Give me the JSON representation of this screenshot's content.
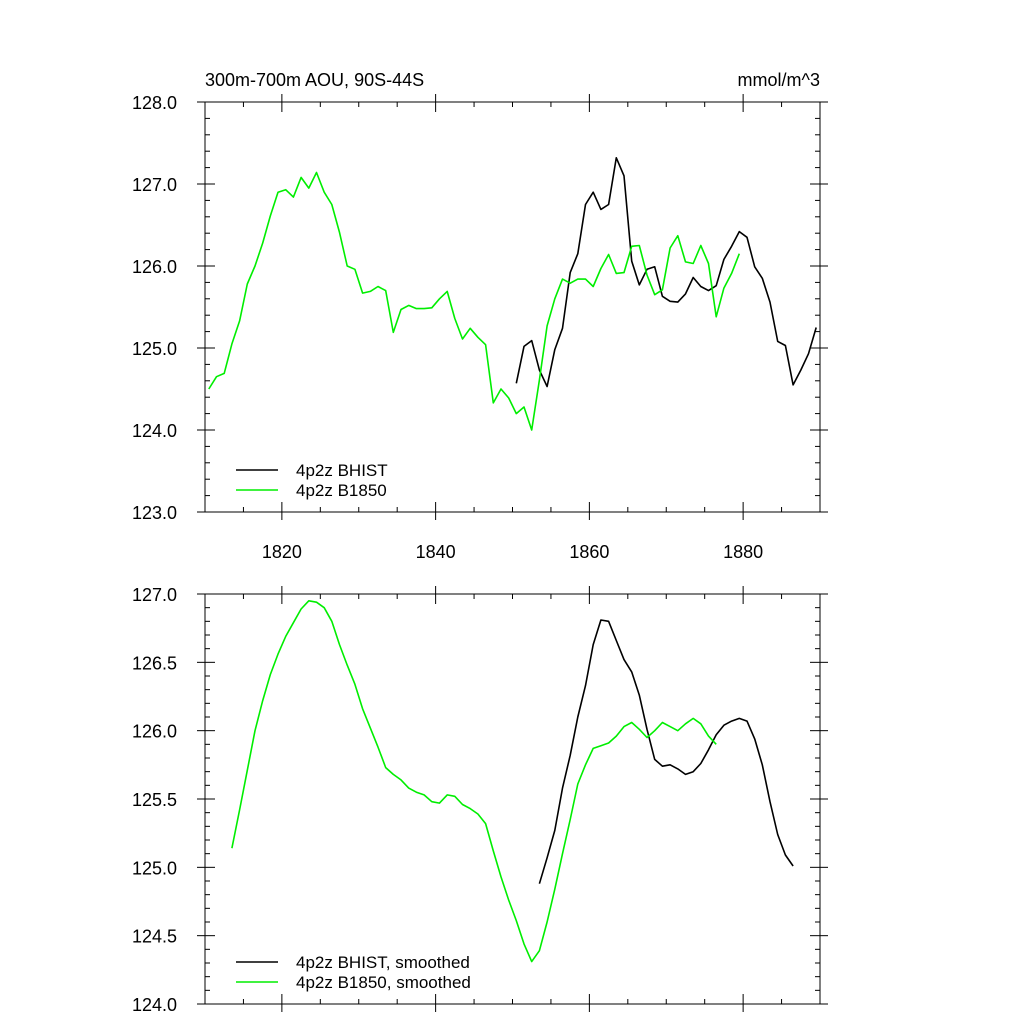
{
  "colors": {
    "bhist": "#000000",
    "b1850": "#00ee00",
    "background": "#ffffff"
  },
  "chart_data": [
    {
      "type": "line",
      "title": "300m-700m AOU, 90S-44S",
      "units": "mmol/m^3",
      "xlim": [
        1810,
        1890
      ],
      "ylim": [
        123.0,
        128.0
      ],
      "x_ticks": [
        "1820",
        "1840",
        "1860",
        "1880"
      ],
      "y_ticks": [
        "123.0",
        "124.0",
        "125.0",
        "126.0",
        "127.0",
        "128.0"
      ],
      "legend_position": "bottom-left",
      "series": [
        {
          "name": "4p2z BHIST",
          "color": "#000000",
          "x": [
            1850.5,
            1851.5,
            1852.5,
            1853.5,
            1854.5,
            1855.5,
            1856.5,
            1857.5,
            1858.5,
            1859.5,
            1860.5,
            1861.5,
            1862.5,
            1863.5,
            1864.5,
            1865.5,
            1866.5,
            1867.5,
            1868.5,
            1869.5,
            1870.5,
            1871.5,
            1872.5,
            1873.5,
            1874.5,
            1875.5,
            1876.5,
            1877.5,
            1878.5,
            1879.5,
            1880.5,
            1881.5,
            1882.5,
            1883.5,
            1884.5,
            1885.5,
            1886.5,
            1887.5,
            1888.5,
            1889.5
          ],
          "y": [
            124.57,
            125.02,
            125.09,
            124.73,
            124.53,
            124.98,
            125.24,
            125.92,
            126.15,
            126.75,
            126.9,
            126.69,
            126.75,
            127.32,
            127.1,
            126.06,
            125.77,
            125.96,
            125.99,
            125.63,
            125.57,
            125.56,
            125.66,
            125.86,
            125.75,
            125.7,
            125.76,
            126.08,
            126.24,
            126.42,
            126.35,
            125.99,
            125.85,
            125.56,
            125.08,
            125.03,
            124.55,
            124.73,
            124.93,
            125.25
          ]
        },
        {
          "name": "4p2z B1850",
          "color": "#00ee00",
          "x": [
            1810.5,
            1811.5,
            1812.5,
            1813.5,
            1814.5,
            1815.5,
            1816.5,
            1817.5,
            1818.5,
            1819.5,
            1820.5,
            1821.5,
            1822.5,
            1823.5,
            1824.5,
            1825.5,
            1826.5,
            1827.5,
            1828.5,
            1829.5,
            1830.5,
            1831.5,
            1832.5,
            1833.5,
            1834.5,
            1835.5,
            1836.5,
            1837.5,
            1838.5,
            1839.5,
            1840.5,
            1841.5,
            1842.5,
            1843.5,
            1844.5,
            1845.5,
            1846.5,
            1847.5,
            1848.5,
            1849.5,
            1850.5,
            1851.5,
            1852.5,
            1853.5,
            1854.5,
            1855.5,
            1856.5,
            1857.5,
            1858.5,
            1859.5,
            1860.5,
            1861.5,
            1862.5,
            1863.5,
            1864.5,
            1865.5,
            1866.5,
            1867.5,
            1868.5,
            1869.5,
            1870.5,
            1871.5,
            1872.5,
            1873.5,
            1874.5,
            1875.5,
            1876.5,
            1877.5,
            1878.5,
            1879.5
          ],
          "y": [
            124.5,
            124.65,
            124.69,
            125.05,
            125.33,
            125.78,
            126.0,
            126.28,
            126.61,
            126.9,
            126.93,
            126.84,
            127.08,
            126.95,
            127.14,
            126.9,
            126.75,
            126.41,
            126.0,
            125.96,
            125.67,
            125.69,
            125.75,
            125.7,
            125.19,
            125.47,
            125.52,
            125.48,
            125.48,
            125.49,
            125.6,
            125.69,
            125.36,
            125.11,
            125.24,
            125.13,
            125.04,
            124.33,
            124.5,
            124.39,
            124.2,
            124.28,
            124.0,
            124.61,
            125.27,
            125.6,
            125.84,
            125.79,
            125.84,
            125.84,
            125.75,
            125.97,
            126.14,
            125.91,
            125.92,
            126.24,
            126.25,
            125.89,
            125.65,
            125.71,
            126.22,
            126.37,
            126.05,
            126.03,
            126.25,
            126.03,
            125.38,
            125.73,
            125.91,
            126.15
          ]
        }
      ]
    },
    {
      "type": "line",
      "title": "",
      "units": "",
      "xlim": [
        1810,
        1890
      ],
      "ylim": [
        124.0,
        127.0
      ],
      "x_ticks": [],
      "y_ticks": [
        "124.0",
        "124.5",
        "125.0",
        "125.5",
        "126.0",
        "126.5",
        "127.0"
      ],
      "legend_position": "bottom-left",
      "series": [
        {
          "name": "4p2z BHIST, smoothed",
          "color": "#000000",
          "x": [
            1853.5,
            1854.5,
            1855.5,
            1856.5,
            1857.5,
            1858.5,
            1859.5,
            1860.5,
            1861.5,
            1862.5,
            1863.5,
            1864.5,
            1865.5,
            1866.5,
            1867.5,
            1868.5,
            1869.5,
            1870.5,
            1871.5,
            1872.5,
            1873.5,
            1874.5,
            1875.5,
            1876.5,
            1877.5,
            1878.5,
            1879.5,
            1880.5,
            1881.5,
            1882.5,
            1883.5,
            1884.5,
            1885.5,
            1886.5
          ],
          "y": [
            124.88,
            125.07,
            125.27,
            125.58,
            125.82,
            126.1,
            126.33,
            126.63,
            126.81,
            126.8,
            126.66,
            126.52,
            126.43,
            126.26,
            126.01,
            125.79,
            125.74,
            125.75,
            125.72,
            125.68,
            125.7,
            125.76,
            125.86,
            125.97,
            126.04,
            126.07,
            126.09,
            126.07,
            125.94,
            125.75,
            125.48,
            125.24,
            125.09,
            125.01
          ]
        },
        {
          "name": "4p2z B1850, smoothed",
          "color": "#00ee00",
          "x": [
            1813.5,
            1814.5,
            1815.5,
            1816.5,
            1817.5,
            1818.5,
            1819.5,
            1820.5,
            1821.5,
            1822.5,
            1823.5,
            1824.5,
            1825.5,
            1826.5,
            1827.5,
            1828.5,
            1829.5,
            1830.5,
            1831.5,
            1832.5,
            1833.5,
            1834.5,
            1835.5,
            1836.5,
            1837.5,
            1838.5,
            1839.5,
            1840.5,
            1841.5,
            1842.5,
            1843.5,
            1844.5,
            1845.5,
            1846.5,
            1847.5,
            1848.5,
            1849.5,
            1850.5,
            1851.5,
            1852.5,
            1853.5,
            1854.5,
            1855.5,
            1856.5,
            1857.5,
            1858.5,
            1859.5,
            1860.5,
            1861.5,
            1862.5,
            1863.5,
            1864.5,
            1865.5,
            1866.5,
            1867.5,
            1868.5,
            1869.5,
            1870.5,
            1871.5,
            1872.5,
            1873.5,
            1874.5,
            1875.5,
            1876.5
          ],
          "y": [
            125.14,
            125.42,
            125.71,
            126.0,
            126.22,
            126.41,
            126.56,
            126.69,
            126.79,
            126.89,
            126.95,
            126.94,
            126.9,
            126.8,
            126.63,
            126.48,
            126.34,
            126.16,
            126.02,
            125.88,
            125.73,
            125.68,
            125.64,
            125.58,
            125.55,
            125.53,
            125.48,
            125.47,
            125.53,
            125.52,
            125.46,
            125.43,
            125.39,
            125.32,
            125.12,
            124.93,
            124.76,
            124.61,
            124.44,
            124.31,
            124.39,
            124.6,
            124.84,
            125.1,
            125.35,
            125.61,
            125.75,
            125.87,
            125.89,
            125.91,
            125.96,
            126.03,
            126.06,
            126.01,
            125.95,
            126.0,
            126.06,
            126.03,
            126.0,
            126.05,
            126.09,
            126.05,
            125.96,
            125.9
          ]
        }
      ]
    }
  ]
}
